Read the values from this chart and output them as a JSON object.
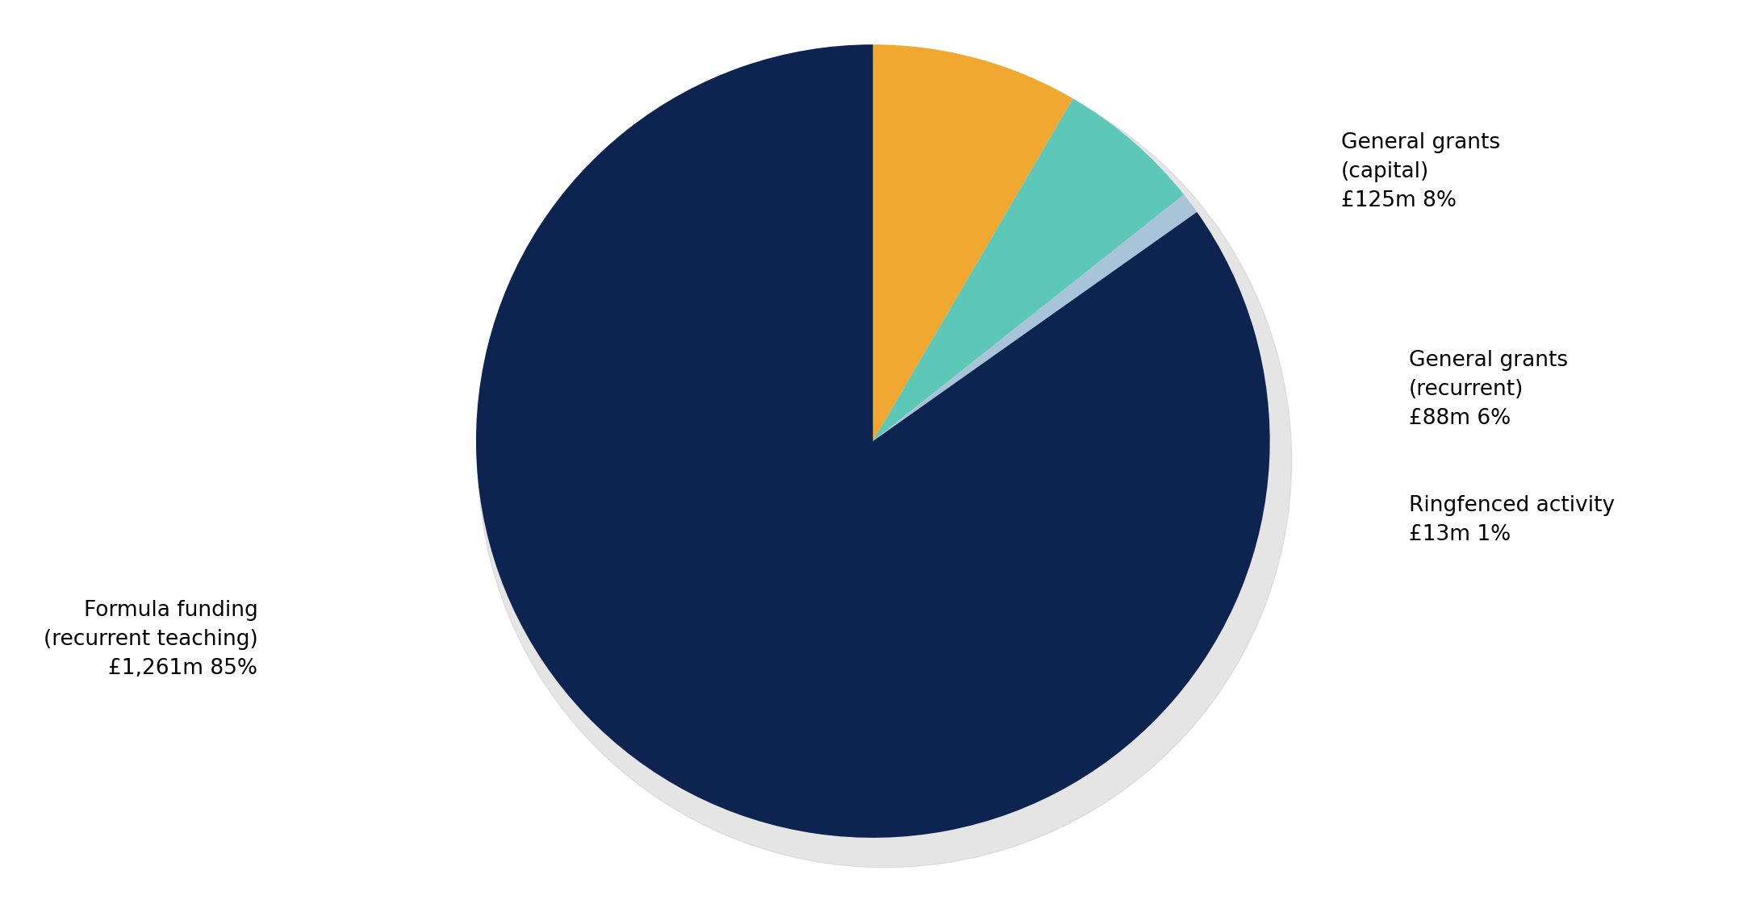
{
  "slices": [
    {
      "label": "General grants\n(capital)\n£125m 8%",
      "value": 125,
      "pct": 8,
      "color": "#f0a830"
    },
    {
      "label": "General grants\n(recurrent)\n£88m 6%",
      "value": 88,
      "pct": 6,
      "color": "#5ec8b8"
    },
    {
      "label": "Ringfenced activity\n£13m 1%",
      "value": 13,
      "pct": 1,
      "color": "#a8c4d8"
    },
    {
      "label": "Formula funding\n(recurrent teaching)\n£1,261m 85%",
      "value": 1261,
      "pct": 85,
      "color": "#0d2350"
    }
  ],
  "startangle": 90,
  "background_color": "#ffffff",
  "label_fontsize": 19,
  "figsize": [
    21.6,
    11.31
  ],
  "dpi": 100,
  "shadow_color": "#cccccc"
}
